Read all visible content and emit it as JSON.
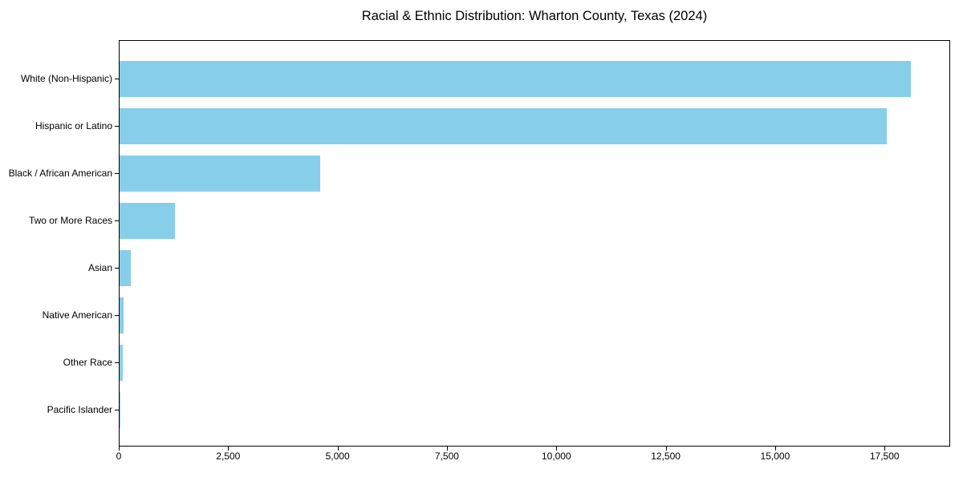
{
  "title": "Racial & Ethnic Distribution: Wharton County, Texas (2024)",
  "colors": {
    "bar": "#87CEEB",
    "axis": "#000000",
    "text": "#000000",
    "background": "#ffffff"
  },
  "chart_data": {
    "type": "bar",
    "orientation": "horizontal",
    "title": "Racial & Ethnic Distribution: Wharton County, Texas (2024)",
    "categories": [
      "White (Non-Hispanic)",
      "Hispanic or Latino",
      "Black / African American",
      "Two or More Races",
      "Asian",
      "Native American",
      "Other Race",
      "Pacific Islander"
    ],
    "values": [
      18090,
      17540,
      4580,
      1260,
      250,
      100,
      70,
      10
    ],
    "xlabel": "",
    "ylabel": "",
    "xlim": [
      0,
      19000
    ],
    "xticks": [
      0,
      2500,
      5000,
      7500,
      10000,
      12500,
      15000,
      17500
    ],
    "xtick_labels": [
      "0",
      "2,500",
      "5,000",
      "7,500",
      "10,000",
      "12,500",
      "15,000",
      "17,500"
    ],
    "bar_color": "#87CEEB",
    "grid": false,
    "legend": "none"
  }
}
